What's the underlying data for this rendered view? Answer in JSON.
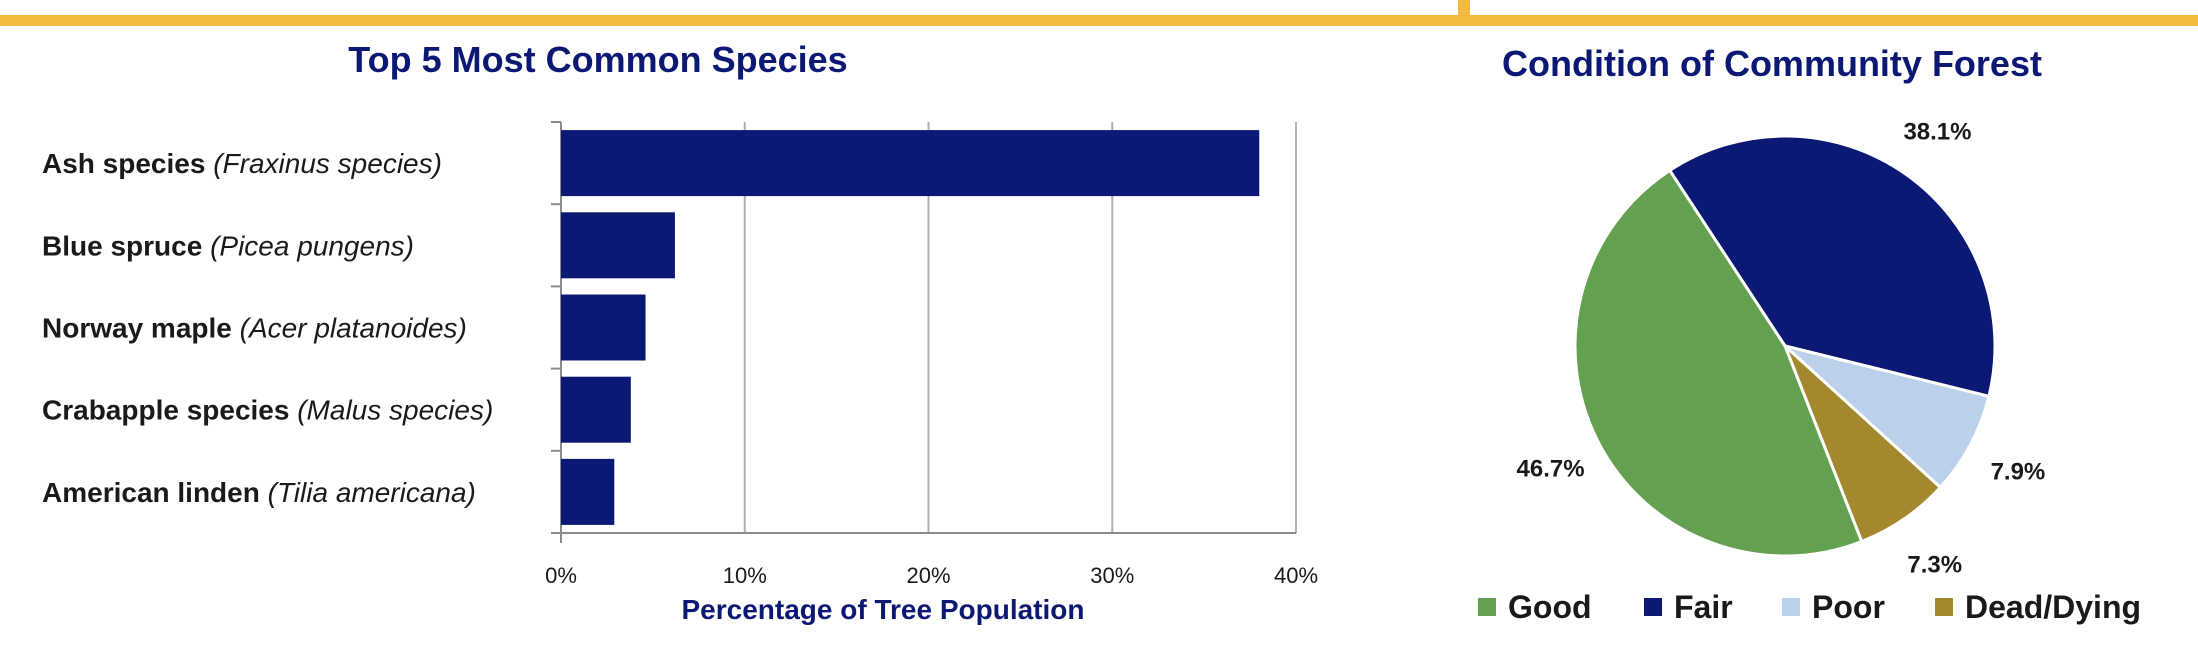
{
  "colors": {
    "accent_bar": "#f2bb3e",
    "navy": "#0b1874",
    "grid": "#b0b0b0",
    "good": "#63a04f",
    "fair": "#0b1874",
    "poor": "#bdd0ea",
    "dead": "#a3882e"
  },
  "chart_data": [
    {
      "type": "bar",
      "orientation": "horizontal",
      "title": "Top 5 Most Common Species",
      "xlabel": "Percentage of Tree Population",
      "ylabel": "",
      "categories": [
        {
          "common": "Ash species",
          "scientific": "(Fraxinus species)"
        },
        {
          "common": "Blue spruce",
          "scientific": "(Picea pungens)"
        },
        {
          "common": "Norway maple",
          "scientific": "(Acer platanoides)"
        },
        {
          "common": "Crabapple species",
          "scientific": "(Malus species)"
        },
        {
          "common": "American linden",
          "scientific": "(Tilia americana)"
        }
      ],
      "values": [
        38.0,
        6.2,
        4.6,
        3.8,
        2.9
      ],
      "xlim": [
        0,
        40
      ],
      "xticks": [
        0,
        10,
        20,
        30,
        40
      ],
      "xtick_labels": [
        "0%",
        "10%",
        "20%",
        "30%",
        "40%"
      ],
      "grid": "vertical",
      "color": "#0b1874"
    },
    {
      "type": "pie",
      "title": "Condition of Community Forest",
      "slices": [
        {
          "name": "Good",
          "value": 46.7,
          "label": "46.7%",
          "color": "#63a04f"
        },
        {
          "name": "Fair",
          "value": 38.1,
          "label": "38.1%",
          "color": "#0b1874"
        },
        {
          "name": "Poor",
          "value": 7.9,
          "label": "7.9%",
          "color": "#bdd0ea"
        },
        {
          "name": "Dead/Dying",
          "value": 7.3,
          "label": "7.3%",
          "color": "#a3882e"
        }
      ],
      "legend": "bottom"
    }
  ]
}
